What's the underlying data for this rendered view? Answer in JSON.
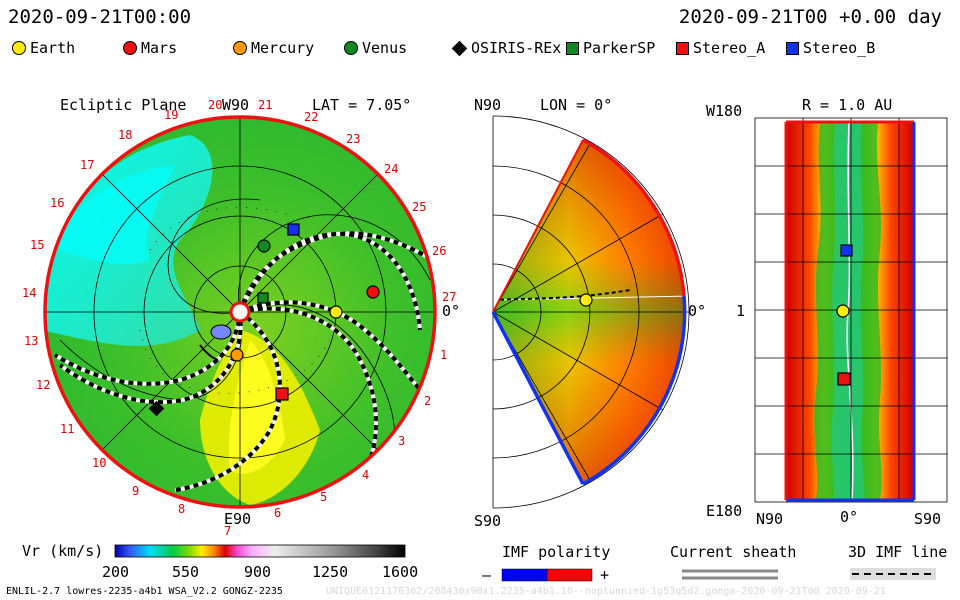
{
  "header": {
    "left_timestamp": "2020-09-21T00:00",
    "right_timestamp": "2020-09-21T00 +0.00 day"
  },
  "legend": [
    {
      "label": "Earth",
      "marker": "circle",
      "color": "#ffee00"
    },
    {
      "label": "Mars",
      "marker": "circle",
      "color": "#ee1111"
    },
    {
      "label": "Mercury",
      "marker": "circle",
      "color": "#ff9900"
    },
    {
      "label": "Venus",
      "marker": "circle",
      "color": "#118822"
    },
    {
      "label": "OSIRIS-REx",
      "marker": "diamond",
      "color": "#000000"
    },
    {
      "label": "ParkerSP",
      "marker": "square",
      "color": "#118822"
    },
    {
      "label": "Stereo_A",
      "marker": "square",
      "color": "#ee1111"
    },
    {
      "label": "Stereo_B",
      "marker": "square",
      "color": "#1133ee"
    }
  ],
  "ecliptic": {
    "title": "Ecliptic Plane",
    "top_label": "W90",
    "lat_label": "LAT = 7.05°",
    "bottom_label": "E90",
    "right_label": "0°",
    "carrington_ticks": [
      "1",
      "2",
      "3",
      "4",
      "5",
      "6",
      "7",
      "8",
      "9",
      "10",
      "11",
      "12",
      "13",
      "14",
      "15",
      "16",
      "17",
      "18",
      "19",
      "20",
      "21",
      "22",
      "23",
      "24",
      "25",
      "26",
      "27"
    ]
  },
  "meridional": {
    "top_label": "N90",
    "lon_label": "LON = 0°",
    "bottom_label": "S90",
    "right_label": "0°"
  },
  "radial": {
    "top_left_label": "W180",
    "r_label": "R = 1.0 AU",
    "mid_label": "1",
    "bottom_left_label": "E180",
    "x_left": "N90",
    "x_mid": "0°",
    "x_right": "S90"
  },
  "colorbar": {
    "label": "Vr (km/s)",
    "ticks": [
      "200",
      "550",
      "900",
      "1250",
      "1600"
    ]
  },
  "imf": {
    "title": "IMF polarity",
    "minus": "–",
    "plus": "+",
    "negative_color": "#0000ff",
    "positive_color": "#ff0000"
  },
  "sheath": {
    "title": "Current sheath"
  },
  "imf3d": {
    "title": "3D IMF line"
  },
  "footer": {
    "left": "ENLIL-2.7 lowres-2235-a4b1 WSA_V2.2 GONGZ-2235",
    "right": "UNIQUE0121176302/208430x90x1.2235-a4b1.16--noptunnied-1g53q5d2.gonga-2020-09-21T00   2020-09-21"
  }
}
